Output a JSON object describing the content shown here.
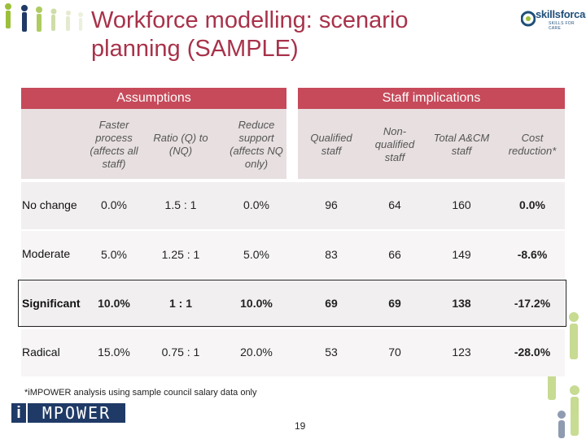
{
  "title": "Workforce modelling: scenario planning (SAMPLE)",
  "logo": {
    "name": "skillsforcare",
    "tagline": "SKILLS FOR CARE"
  },
  "headers": {
    "assumptions": "Assumptions",
    "implications": "Staff implications"
  },
  "columns": [
    "Faster process (affects all staff)",
    "Ratio (Q) to (NQ)",
    "Reduce support (affects NQ only)",
    "Qualified staff",
    "Non-qualified staff",
    "Total A&CM staff",
    "Cost reduction*"
  ],
  "rows": [
    {
      "label": "No change",
      "values": [
        "0.0%",
        "1.5 : 1",
        "0.0%",
        "96",
        "64",
        "160",
        "0.0%"
      ]
    },
    {
      "label": "Moderate",
      "values": [
        "5.0%",
        "1.25 : 1",
        "5.0%",
        "83",
        "66",
        "149",
        "-8.6%"
      ]
    },
    {
      "label": "Significant",
      "values": [
        "10.0%",
        "1 : 1",
        "10.0%",
        "69",
        "69",
        "138",
        "-17.2%"
      ]
    },
    {
      "label": "Radical",
      "values": [
        "15.0%",
        "0.75 : 1",
        "20.0%",
        "53",
        "70",
        "123",
        "-28.0%"
      ]
    }
  ],
  "footnote": "*iMPOWER analysis using  sample council salary data only",
  "impower_logo": {
    "i": "i",
    "rest": "MPOWER"
  },
  "page_number": "19",
  "colors": {
    "accent": "#c64a5a",
    "title": "#a8324a"
  }
}
